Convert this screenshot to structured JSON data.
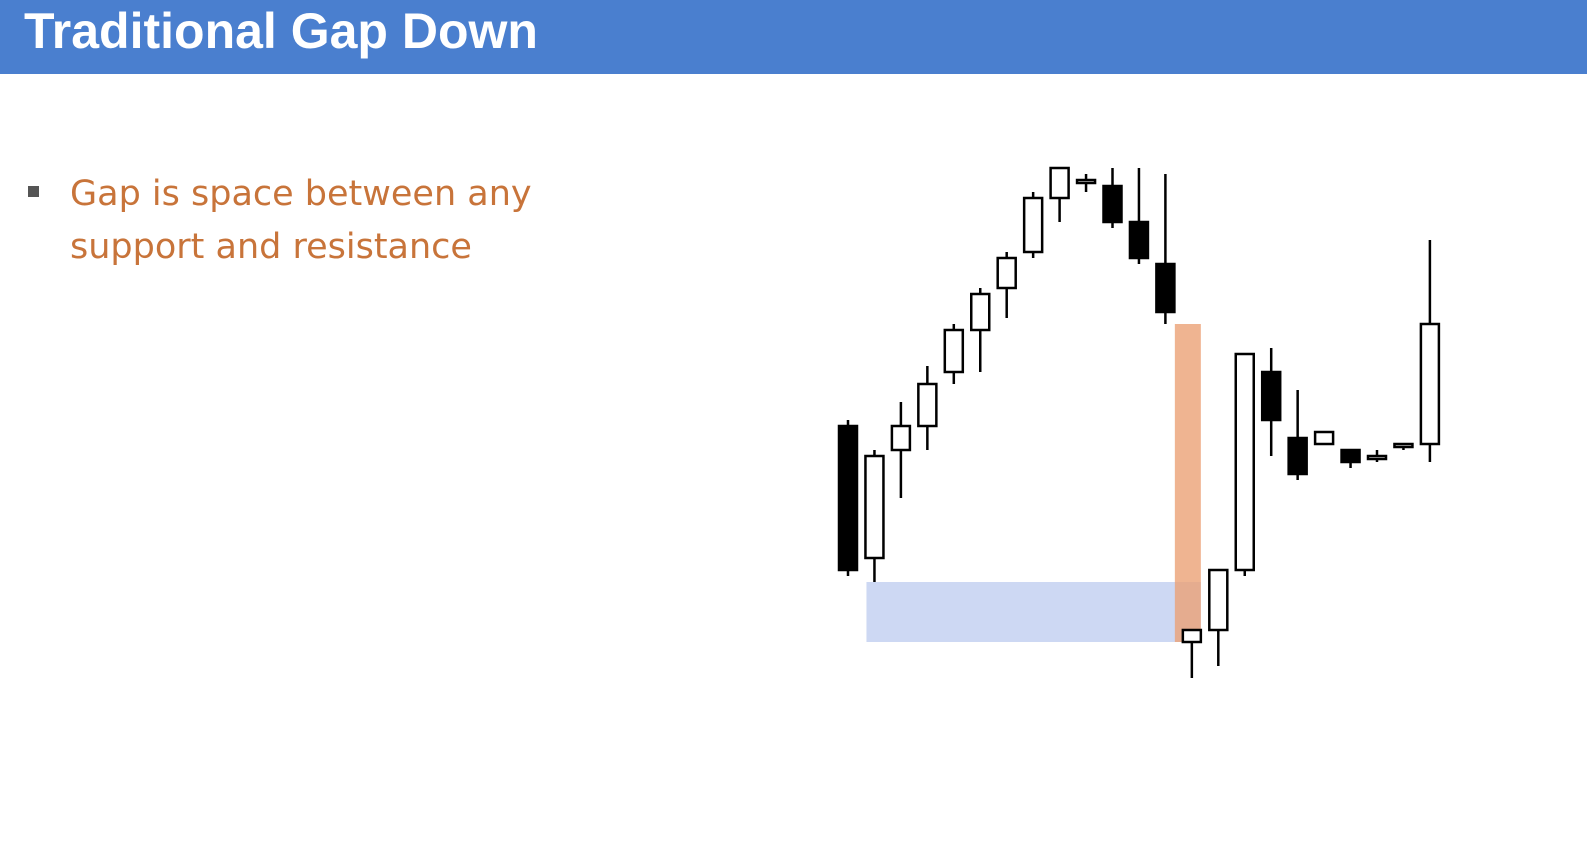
{
  "slide": {
    "title": "Traditional Gap Down",
    "bullet": "Gap is space between any support and resistance"
  },
  "colors": {
    "title_bar": "#4a7fcf",
    "title_text": "#ffffff",
    "bullet_text": "#c8743a",
    "bullet_marker": "#555555",
    "bearish_candle": "#000000",
    "bullet_candle_fill": "#ffffff",
    "gap_zone": "#eba176",
    "support_zone": "#b8c8ee"
  },
  "chart_data": {
    "type": "candlestick",
    "title": "",
    "xlabel": "",
    "ylabel": "",
    "grid": false,
    "axes_visible": false,
    "ylim": [
      0,
      100
    ],
    "candles": [
      {
        "open": 57,
        "high": 58,
        "low": 32,
        "close": 33
      },
      {
        "open": 35,
        "high": 53,
        "low": 31,
        "close": 52
      },
      {
        "open": 53,
        "high": 61,
        "low": 45,
        "close": 57
      },
      {
        "open": 57,
        "high": 67,
        "low": 53,
        "close": 64
      },
      {
        "open": 66,
        "high": 74,
        "low": 64,
        "close": 73
      },
      {
        "open": 73,
        "high": 80,
        "low": 66,
        "close": 79
      },
      {
        "open": 80,
        "high": 86,
        "low": 75,
        "close": 85
      },
      {
        "open": 86,
        "high": 96,
        "low": 85,
        "close": 95
      },
      {
        "open": 95,
        "high": 100,
        "low": 91,
        "close": 100
      },
      {
        "open": 98,
        "high": 99,
        "low": 96,
        "close": 98
      },
      {
        "open": 97,
        "high": 100,
        "low": 90,
        "close": 91
      },
      {
        "open": 91,
        "high": 100,
        "low": 84,
        "close": 85
      },
      {
        "open": 84,
        "high": 99,
        "low": 74,
        "close": 76
      },
      {
        "open": 21,
        "high": 23,
        "low": 15,
        "close": 23
      },
      {
        "open": 23,
        "high": 32,
        "low": 17,
        "close": 33
      },
      {
        "open": 33,
        "high": 68,
        "low": 32,
        "close": 69
      },
      {
        "open": 66,
        "high": 70,
        "low": 52,
        "close": 58
      },
      {
        "open": 55,
        "high": 63,
        "low": 48,
        "close": 49
      },
      {
        "open": 54,
        "high": 56,
        "low": 54,
        "close": 56
      },
      {
        "open": 53,
        "high": 53,
        "low": 50,
        "close": 51
      },
      {
        "open": 52,
        "high": 53,
        "low": 51,
        "close": 52
      },
      {
        "open": 54,
        "high": 54,
        "low": 53,
        "close": 54
      },
      {
        "open": 54,
        "high": 88,
        "low": 51,
        "close": 74
      }
    ],
    "highlights": [
      {
        "name": "gap",
        "from_candle": 12,
        "to_candle": 13,
        "low": 21,
        "high": 74
      },
      {
        "name": "support",
        "from_candle": 1,
        "to_candle": 13,
        "low": 21,
        "high": 31
      }
    ]
  }
}
